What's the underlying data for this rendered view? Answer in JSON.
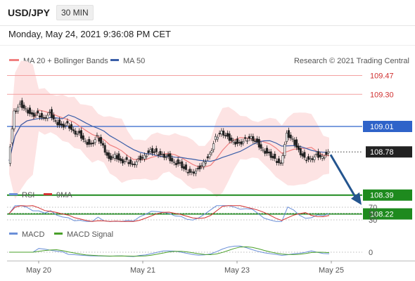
{
  "header": {
    "symbol": "USD/JPY",
    "timeframe": "30 MIN",
    "datetime": "Monday, May 24, 2021 9:36:08 PM CET"
  },
  "legend": {
    "ma20": "MA 20 + Bollinger Bands",
    "ma50": "MA 50",
    "copyright": "Research © 2021 Trading Central",
    "rsi": "RSI",
    "rsi_ma": "9MA",
    "macd": "MACD",
    "macd_signal": "MACD Signal"
  },
  "colors": {
    "resistance": "#f4a0a0",
    "pivot": "#2f63c9",
    "support": "#1e8a1e",
    "ma20": "#f08080",
    "ma50": "#3a5ea8",
    "bollinger": "#fde3e3",
    "rsi": "#6a8fd8",
    "rsi_ma": "#d23030",
    "macd": "#6a8fd8",
    "macd_signal": "#4aa02a",
    "last": "#222222",
    "arrow": "#24558f"
  },
  "chart_data": {
    "type": "line",
    "title": "USD/JPY 30 MIN",
    "x_ticks": [
      "May 20",
      "May 21",
      "May 23",
      "May 25"
    ],
    "price_ylim": [
      107.9,
      109.7
    ],
    "levels": [
      {
        "value": 109.47,
        "label": "109.47",
        "kind": "resistance"
      },
      {
        "value": 109.3,
        "label": "109.30",
        "kind": "resistance"
      },
      {
        "value": 109.01,
        "label": "109.01",
        "kind": "pivot"
      },
      {
        "value": 108.78,
        "label": "108.78",
        "kind": "last"
      },
      {
        "value": 108.39,
        "label": "108.39",
        "kind": "support"
      },
      {
        "value": 108.22,
        "label": "108.22",
        "kind": "support"
      }
    ],
    "price_series": [
      108.7,
      109.15,
      109.22,
      109.17,
      109.12,
      109.13,
      109.09,
      109.14,
      109.06,
      109.02,
      109.04,
      108.97,
      108.95,
      108.88,
      108.85,
      108.93,
      108.84,
      108.72,
      108.76,
      108.7,
      108.71,
      108.67,
      108.72,
      108.75,
      108.8,
      108.78,
      108.76,
      108.74,
      108.69,
      108.68,
      108.62,
      108.6,
      108.63,
      108.69,
      108.76,
      108.92,
      108.97,
      108.92,
      108.88,
      108.86,
      108.9,
      108.92,
      108.87,
      108.8,
      108.77,
      108.72,
      108.68,
      108.95,
      108.9,
      108.8,
      108.73,
      108.72,
      108.76,
      108.74,
      108.78
    ],
    "projection": {
      "from": 108.78,
      "to": 108.39,
      "direction": "down"
    },
    "rsi": {
      "ticks": [
        70,
        50,
        30
      ],
      "ylim": [
        20,
        80
      ]
    },
    "macd": {
      "ticks": [
        0
      ]
    },
    "series": [
      {
        "name": "MA 20 + Bollinger Bands"
      },
      {
        "name": "MA 50"
      },
      {
        "name": "RSI"
      },
      {
        "name": "9MA"
      },
      {
        "name": "MACD"
      },
      {
        "name": "MACD Signal"
      }
    ]
  }
}
